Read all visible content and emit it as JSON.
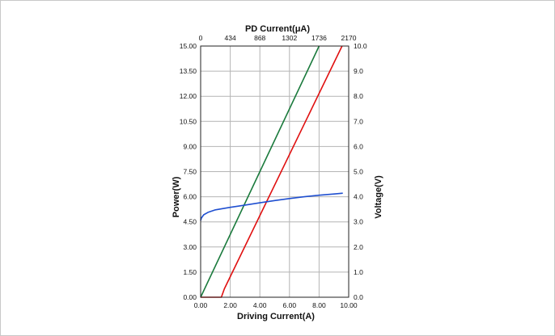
{
  "chart_data": {
    "type": "line",
    "title": "",
    "xlabel": "Driving Current(A)",
    "x2label": "PD Current(μA)",
    "ylabel": "Power(W)",
    "y2label": "Voltage(V)",
    "xlim": [
      0,
      10
    ],
    "x2lim": [
      0,
      2170
    ],
    "ylim": [
      0,
      15
    ],
    "y2lim": [
      0,
      10
    ],
    "x_ticks": [
      "0.00",
      "2.00",
      "4.00",
      "6.00",
      "8.00",
      "10.00"
    ],
    "x2_ticks": [
      "0",
      "434",
      "868",
      "1302",
      "1736",
      "2170"
    ],
    "y_ticks": [
      "0.00",
      "1.50",
      "3.00",
      "4.50",
      "6.00",
      "7.50",
      "9.00",
      "10.50",
      "12.00",
      "13.50",
      "15.00"
    ],
    "y2_ticks": [
      "0.0",
      "1.0",
      "2.0",
      "3.0",
      "4.0",
      "5.0",
      "6.0",
      "7.0",
      "8.0",
      "9.0",
      "10.0"
    ],
    "grid": true,
    "legend": "none",
    "series": [
      {
        "color": "#1a7a3c",
        "axis": "x2-y",
        "x": [
          0,
          1736
        ],
        "y": [
          0,
          15
        ]
      },
      {
        "color": "#e01010",
        "axis": "x-y",
        "x": [
          0,
          1.4,
          1.6,
          9.55
        ],
        "y": [
          0,
          0,
          0.5,
          15
        ]
      },
      {
        "color": "#1f4fd0",
        "axis": "x-y2",
        "x": [
          0,
          0.05,
          0.2,
          0.5,
          1,
          2,
          3,
          4,
          5,
          6,
          7,
          8,
          9,
          9.6
        ],
        "y": [
          3.05,
          3.15,
          3.28,
          3.38,
          3.48,
          3.58,
          3.67,
          3.76,
          3.85,
          3.93,
          4.0,
          4.06,
          4.11,
          4.14
        ]
      }
    ]
  }
}
